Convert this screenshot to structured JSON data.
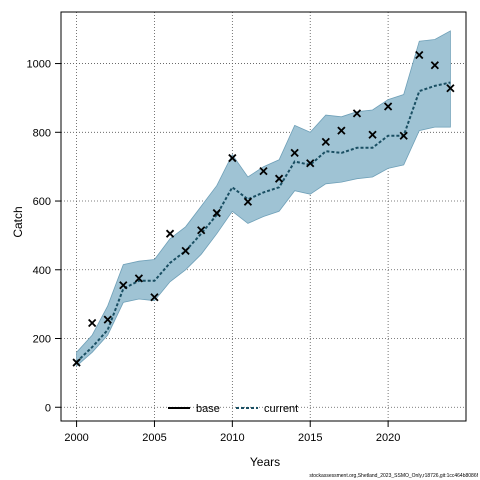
{
  "chart_data": {
    "type": "line",
    "xlabel": "Years",
    "ylabel": "Catch",
    "xlim": [
      1999,
      2025
    ],
    "ylim": [
      -40,
      1150
    ],
    "grid": true,
    "x_ticks": [
      2000,
      2005,
      2010,
      2015,
      2020
    ],
    "y_ticks": [
      0,
      200,
      400,
      600,
      800,
      1000
    ],
    "x_tick_labels": [
      "2000",
      "2005",
      "2010",
      "2015",
      "2020"
    ],
    "y_tick_labels": [
      "0",
      "200",
      "400",
      "600",
      "800",
      "1000"
    ],
    "legend": {
      "placement": "bottom",
      "entries": [
        {
          "label": "base",
          "style": "solid",
          "color": "#000000"
        },
        {
          "label": "current",
          "style": "dashed",
          "color": "#1a4f63"
        }
      ]
    },
    "colors": {
      "band": "#9fc3d4",
      "band_edge": "#6fa0b8",
      "current_line": "#1a4f63",
      "obs": "#000000"
    },
    "x": [
      2000,
      2001,
      2002,
      2003,
      2004,
      2005,
      2006,
      2007,
      2008,
      2009,
      2010,
      2011,
      2012,
      2013,
      2014,
      2015,
      2016,
      2017,
      2018,
      2019,
      2020,
      2021,
      2022,
      2023,
      2024
    ],
    "series": [
      {
        "name": "current",
        "kind": "line",
        "values": [
          132,
          175,
          225,
          345,
          368,
          368,
          420,
          455,
          505,
          560,
          640,
          605,
          625,
          640,
          715,
          705,
          745,
          740,
          755,
          755,
          790,
          790,
          920,
          935,
          945
        ],
        "lower": [
          120,
          160,
          210,
          305,
          315,
          310,
          365,
          400,
          445,
          505,
          570,
          535,
          555,
          570,
          630,
          620,
          650,
          655,
          665,
          670,
          695,
          705,
          805,
          815,
          815
        ],
        "upper": [
          160,
          210,
          295,
          415,
          425,
          430,
          490,
          525,
          585,
          645,
          735,
          670,
          700,
          720,
          820,
          800,
          850,
          845,
          860,
          865,
          895,
          910,
          1065,
          1070,
          1095
        ]
      },
      {
        "name": "observed",
        "kind": "scatter",
        "values": [
          130,
          245,
          255,
          355,
          375,
          320,
          505,
          455,
          515,
          565,
          725,
          598,
          687,
          665,
          740,
          710,
          772,
          805,
          855,
          793,
          875,
          790,
          1025,
          995,
          928
        ]
      }
    ]
  },
  "footer": {
    "credit": "stockassessment.org,Shetland_2023_SSMO_Only,r18726,git:1cc464b8086f"
  }
}
